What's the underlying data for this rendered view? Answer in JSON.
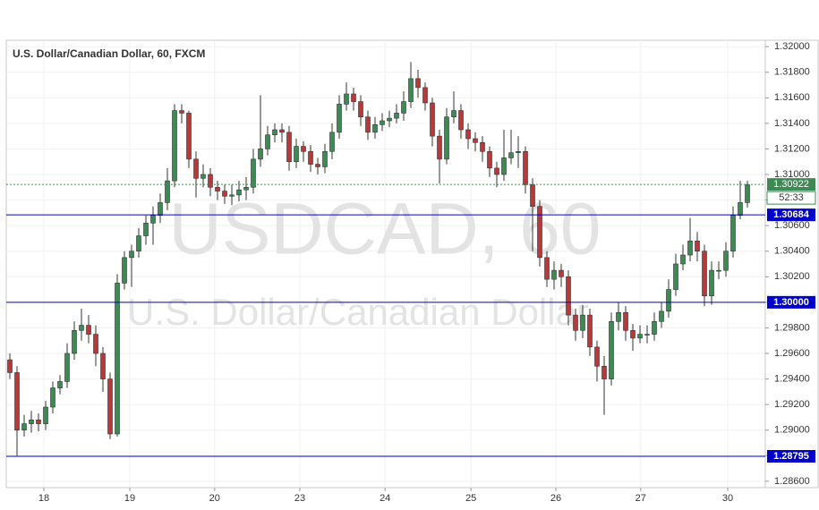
{
  "chart_data": {
    "type": "candlestick",
    "title": "U.S. Dollar/Canadian Dollar, 60, FXCM",
    "watermark": [
      "USDCAD, 60",
      "U.S. Dollar/Canadian Dollar"
    ],
    "up_color": "#3e8a55",
    "down_color": "#b8393a",
    "grid": true,
    "x": [
      0,
      1,
      2,
      3,
      4,
      5,
      6,
      7,
      8,
      9,
      10,
      11,
      12,
      13,
      14,
      15,
      16,
      17,
      18,
      19,
      20,
      21,
      22,
      23,
      24,
      25,
      26,
      27,
      28,
      29,
      30,
      31,
      32,
      33,
      34,
      35,
      36,
      37,
      38,
      39,
      40,
      41,
      42,
      43,
      44,
      45,
      46,
      47,
      48,
      49,
      50,
      51,
      52,
      53,
      54,
      55,
      56,
      57,
      58,
      59,
      60,
      61,
      62,
      63,
      64,
      65,
      66,
      67,
      68,
      69,
      70,
      71,
      72,
      73,
      74,
      75,
      76,
      77,
      78,
      79,
      80,
      81,
      82,
      83,
      84,
      85,
      86,
      87,
      88,
      89,
      90,
      91,
      92,
      93,
      94,
      95,
      96,
      97,
      98,
      99,
      100,
      101,
      102,
      103
    ],
    "open": [
      1.2955,
      1.2945,
      1.29,
      1.2905,
      1.2908,
      1.2905,
      1.2918,
      1.2933,
      1.2938,
      1.296,
      1.2978,
      1.2982,
      1.2975,
      1.296,
      1.294,
      1.2897,
      1.3015,
      1.3035,
      1.304,
      1.3052,
      1.3062,
      1.3068,
      1.3078,
      1.3095,
      1.315,
      1.3148,
      1.3112,
      1.3097,
      1.31,
      1.309,
      1.3087,
      1.3083,
      1.3084,
      1.3088,
      1.309,
      1.3112,
      1.312,
      1.3131,
      1.3135,
      1.3133,
      1.311,
      1.3122,
      1.3118,
      1.3108,
      1.3106,
      1.3118,
      1.3133,
      1.3155,
      1.3163,
      1.3157,
      1.3145,
      1.3133,
      1.3139,
      1.3142,
      1.3144,
      1.3148,
      1.3157,
      1.3175,
      1.3168,
      1.3156,
      1.313,
      1.3112,
      1.3145,
      1.315,
      1.3135,
      1.3128,
      1.3125,
      1.3118,
      1.3105,
      1.31,
      1.3113,
      1.3117,
      1.3118,
      1.3092,
      1.3075,
      1.3035,
      1.3018,
      1.3025,
      1.302,
      1.299,
      1.2978,
      1.299,
      1.2965,
      1.295,
      1.294,
      1.2985,
      1.2992,
      1.2978,
      1.2972,
      1.2975,
      1.2975,
      1.2985,
      1.2993,
      1.301,
      1.303,
      1.3037,
      1.3048,
      1.304,
      1.3005,
      1.3025,
      1.3025,
      1.304,
      1.3068,
      1.3078
    ],
    "high": [
      1.296,
      1.295,
      1.2912,
      1.2915,
      1.2913,
      1.2923,
      1.2938,
      1.2943,
      1.2968,
      1.2985,
      1.2995,
      1.299,
      1.2982,
      1.2965,
      1.2945,
      1.3022,
      1.304,
      1.3045,
      1.3058,
      1.3068,
      1.3075,
      1.3085,
      1.3105,
      1.3155,
      1.3155,
      1.315,
      1.3118,
      1.3108,
      1.3105,
      1.3095,
      1.3092,
      1.3092,
      1.3095,
      1.3098,
      1.312,
      1.3162,
      1.3138,
      1.314,
      1.314,
      1.3138,
      1.3128,
      1.3126,
      1.3123,
      1.3113,
      1.3124,
      1.314,
      1.3162,
      1.3172,
      1.3168,
      1.3162,
      1.315,
      1.3145,
      1.3148,
      1.315,
      1.3155,
      1.3165,
      1.3188,
      1.3182,
      1.3172,
      1.316,
      1.3135,
      1.3152,
      1.3165,
      1.3155,
      1.314,
      1.3133,
      1.313,
      1.3122,
      1.311,
      1.3135,
      1.3135,
      1.313,
      1.3122,
      1.3097,
      1.308,
      1.304,
      1.3032,
      1.303,
      1.3025,
      1.2995,
      1.2998,
      1.2995,
      1.297,
      1.2958,
      1.2992,
      1.3,
      1.2997,
      1.2983,
      1.2982,
      1.2982,
      1.2992,
      1.3,
      1.3018,
      1.3038,
      1.3045,
      1.3066,
      1.3055,
      1.3045,
      1.3032,
      1.3032,
      1.3047,
      1.3075,
      1.3095,
      1.3095
    ],
    "low": [
      1.294,
      1.288,
      1.2895,
      1.2898,
      1.2899,
      1.29,
      1.2913,
      1.2928,
      1.2933,
      1.2955,
      1.297,
      1.2968,
      1.295,
      1.293,
      1.2893,
      1.2895,
      1.301,
      1.3012,
      1.3035,
      1.3045,
      1.3045,
      1.3062,
      1.3072,
      1.309,
      1.314,
      1.3105,
      1.3082,
      1.309,
      1.3083,
      1.308,
      1.3077,
      1.3076,
      1.3079,
      1.308,
      1.3085,
      1.3106,
      1.3115,
      1.3125,
      1.3125,
      1.3103,
      1.3105,
      1.311,
      1.3102,
      1.31,
      1.3101,
      1.3112,
      1.3128,
      1.315,
      1.315,
      1.3138,
      1.3127,
      1.3128,
      1.3134,
      1.3137,
      1.314,
      1.3142,
      1.3152,
      1.316,
      1.315,
      1.3122,
      1.3093,
      1.3108,
      1.314,
      1.3128,
      1.312,
      1.3118,
      1.311,
      1.3098,
      1.309,
      1.3095,
      1.3108,
      1.3105,
      1.3085,
      1.304,
      1.3028,
      1.3012,
      1.301,
      1.3012,
      1.2982,
      1.297,
      1.2972,
      1.2958,
      1.2938,
      1.2912,
      1.2935,
      1.2978,
      1.297,
      1.2962,
      1.2968,
      1.2968,
      1.297,
      1.298,
      1.2988,
      1.3005,
      1.3025,
      1.3032,
      1.3032,
      1.2997,
      1.2998,
      1.3018,
      1.302,
      1.3035,
      1.3065,
      1.3074
    ],
    "close": [
      1.2945,
      1.29,
      1.2905,
      1.2908,
      1.2905,
      1.2918,
      1.2933,
      1.2938,
      1.296,
      1.2978,
      1.2982,
      1.2975,
      1.296,
      1.294,
      1.2897,
      1.3015,
      1.3035,
      1.304,
      1.3052,
      1.3062,
      1.3068,
      1.3078,
      1.3095,
      1.315,
      1.3148,
      1.3112,
      1.3097,
      1.31,
      1.309,
      1.3087,
      1.3083,
      1.3084,
      1.3088,
      1.309,
      1.3112,
      1.312,
      1.3131,
      1.3135,
      1.3133,
      1.311,
      1.3122,
      1.3118,
      1.3108,
      1.3106,
      1.3118,
      1.3133,
      1.3155,
      1.3163,
      1.3157,
      1.3145,
      1.3133,
      1.3139,
      1.3142,
      1.3144,
      1.3148,
      1.3157,
      1.3175,
      1.3168,
      1.3156,
      1.313,
      1.3112,
      1.3145,
      1.315,
      1.3135,
      1.3128,
      1.3125,
      1.3118,
      1.3105,
      1.31,
      1.3113,
      1.3117,
      1.3118,
      1.3092,
      1.3075,
      1.3035,
      1.3018,
      1.3025,
      1.302,
      1.299,
      1.2978,
      1.299,
      1.2965,
      1.295,
      1.294,
      1.2985,
      1.2992,
      1.2978,
      1.2972,
      1.2975,
      1.2975,
      1.2985,
      1.2993,
      1.301,
      1.303,
      1.3037,
      1.3048,
      1.304,
      1.3005,
      1.3025,
      1.3025,
      1.304,
      1.3068,
      1.3078,
      1.3092
    ],
    "xlim": [
      -0.5,
      105.5
    ],
    "xticks": [
      {
        "value": 4.75,
        "label": "18"
      },
      {
        "value": 16.75,
        "label": "19"
      },
      {
        "value": 28.6,
        "label": "20"
      },
      {
        "value": 40.5,
        "label": "23"
      },
      {
        "value": 52.4,
        "label": "24"
      },
      {
        "value": 64.4,
        "label": "25"
      },
      {
        "value": 76.25,
        "label": "26"
      },
      {
        "value": 88.1,
        "label": "27"
      },
      {
        "value": 100.25,
        "label": "30"
      }
    ],
    "ylim": [
      1.2855,
      1.3205
    ],
    "yticks": [
      {
        "value": 1.32,
        "label": "1.32000"
      },
      {
        "value": 1.318,
        "label": "1.31800"
      },
      {
        "value": 1.316,
        "label": "1.31600"
      },
      {
        "value": 1.314,
        "label": "1.31400"
      },
      {
        "value": 1.312,
        "label": "1.31200"
      },
      {
        "value": 1.31,
        "label": "1.31000"
      },
      {
        "value": 1.308,
        "label": "1.30800"
      },
      {
        "value": 1.306,
        "label": "1.30600"
      },
      {
        "value": 1.304,
        "label": "1.30400"
      },
      {
        "value": 1.302,
        "label": "1.30200"
      },
      {
        "value": 1.3,
        "label": "1.30000"
      },
      {
        "value": 1.298,
        "label": "1.29800"
      },
      {
        "value": 1.296,
        "label": "1.29600"
      },
      {
        "value": 1.294,
        "label": "1.29400"
      },
      {
        "value": 1.292,
        "label": "1.29200"
      },
      {
        "value": 1.29,
        "label": "1.29000"
      },
      {
        "value": 1.288,
        "label": "1.28800"
      },
      {
        "value": 1.286,
        "label": "1.28600"
      }
    ],
    "levels": [
      {
        "value": 1.30684,
        "label": "1.30684"
      },
      {
        "value": 1.3,
        "label": "1.30000"
      },
      {
        "value": 1.28795,
        "label": "1.28795"
      }
    ],
    "level_color": "#0000cc",
    "last_price": {
      "value": 1.30922,
      "label": "1.30922",
      "countdown": "52:33",
      "color": "#3e8a55"
    }
  }
}
